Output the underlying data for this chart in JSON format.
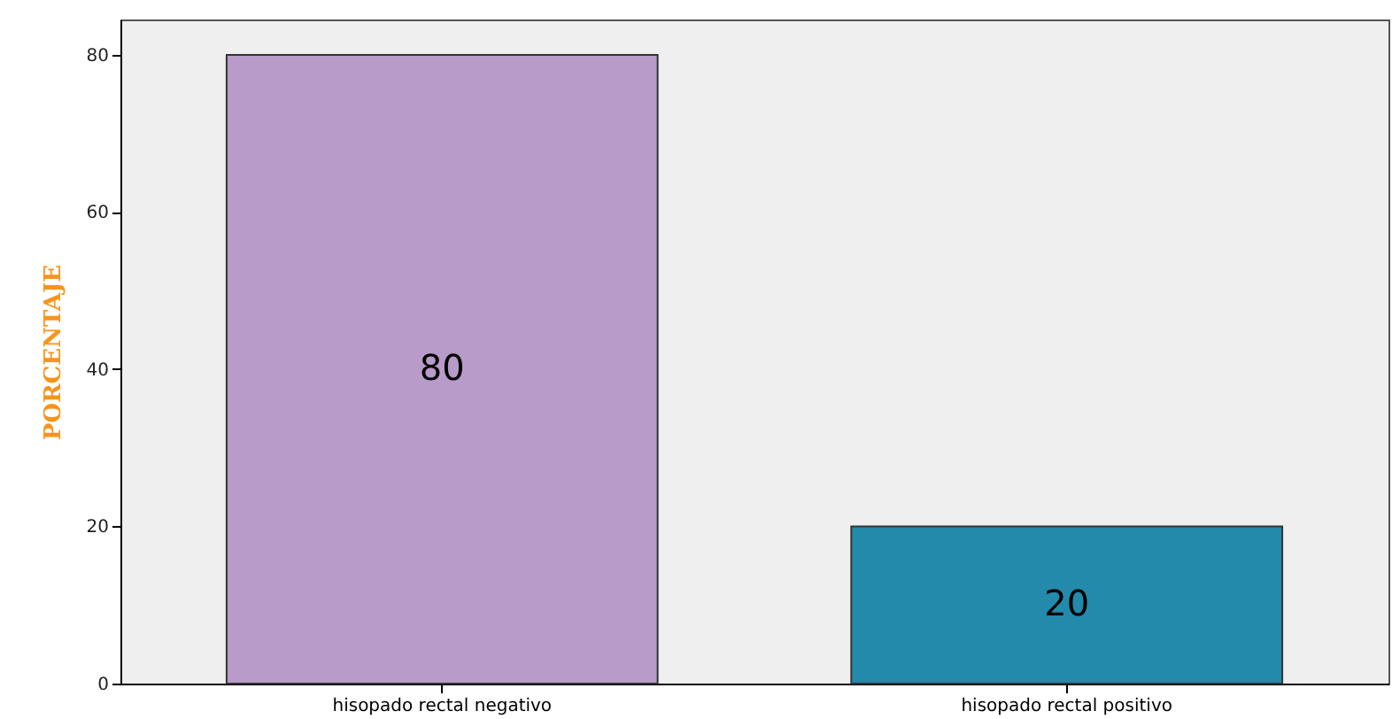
{
  "chart_data": {
    "type": "bar",
    "ylabel": "PORCENTAJE",
    "categories": [
      "hisopado rectal negativo",
      "hisopado rectal positivo"
    ],
    "values": [
      80,
      20
    ],
    "colors": [
      "#b89bc9",
      "#238aab"
    ],
    "ylim": [
      0,
      84.5
    ],
    "yticks": [
      0,
      20,
      40,
      60,
      80
    ],
    "grid": false,
    "data_labels": true
  }
}
